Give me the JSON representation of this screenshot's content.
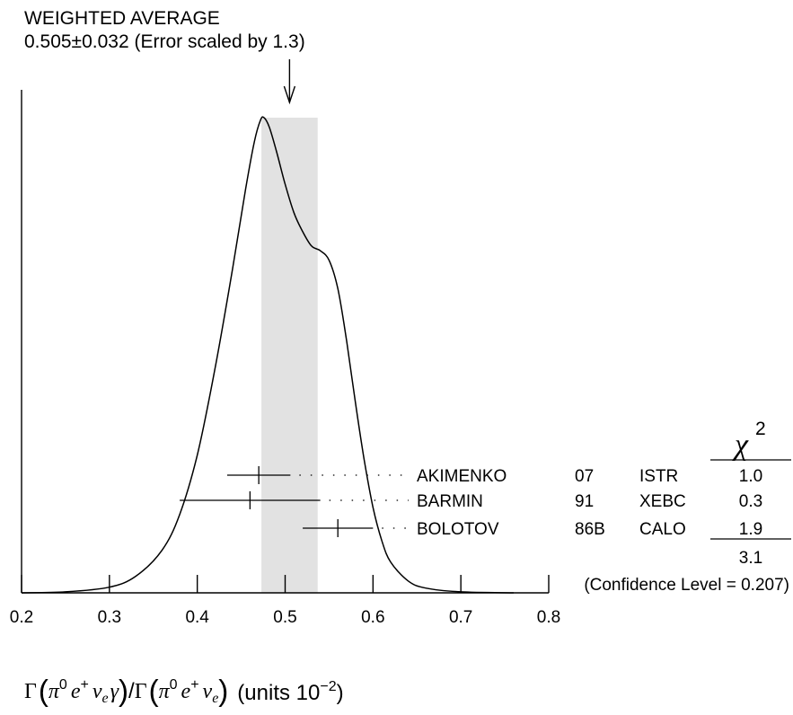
{
  "chart_data": {
    "type": "ideogram",
    "header": {
      "title": "WEIGHTED AVERAGE",
      "subtitle": "0.505±0.032 (Error scaled by 1.3)"
    },
    "weighted_average": {
      "value": 0.505,
      "error": 0.032,
      "scale_factor": 1.3
    },
    "band": [
      0.473,
      0.537
    ],
    "xlim": [
      0.2,
      0.8
    ],
    "x_ticks": [
      0.2,
      0.3,
      0.4,
      0.5,
      0.6,
      0.7,
      0.8
    ],
    "x_tick_labels": [
      "0.2",
      "0.3",
      "0.4",
      "0.5",
      "0.6",
      "0.7",
      "0.8"
    ],
    "xlabel": {
      "gamma": "Γ",
      "numerator_pi": "π",
      "numerator_zero": "0",
      "numerator_e": "e",
      "numerator_plus": "+",
      "numerator_nu": "ν",
      "numerator_nu_sub": "e",
      "numerator_gamma": "γ",
      "slash": "/",
      "denominator_pi": "π",
      "denominator_zero": "0",
      "denominator_e": "e",
      "denominator_plus": "+",
      "denominator_nu": "ν",
      "denominator_nu_sub": "e",
      "units_text": "(units 10",
      "units_exp": "−2",
      "units_close": ")"
    },
    "measurements": [
      {
        "author": "AKIMENKO",
        "year": "07",
        "technique": "ISTR",
        "value": 0.47,
        "lo": 0.434,
        "hi": 0.506,
        "chi2": "1.0"
      },
      {
        "author": "BARMIN",
        "year": "91",
        "technique": "XEBC",
        "value": 0.46,
        "lo": 0.38,
        "hi": 0.54,
        "chi2": "0.3"
      },
      {
        "author": "BOLOTOV",
        "year": "86B",
        "technique": "CALO",
        "value": 0.56,
        "lo": 0.52,
        "hi": 0.6,
        "chi2": "1.9"
      }
    ],
    "chi2_header": {
      "symbol": "χ",
      "exponent": "2"
    },
    "chi2_total": "3.1",
    "confidence_level": "(Confidence Level = 0.207)",
    "curve": [
      [
        0.2,
        0.0
      ],
      [
        0.25,
        0.002
      ],
      [
        0.3,
        0.012
      ],
      [
        0.33,
        0.035
      ],
      [
        0.36,
        0.09
      ],
      [
        0.38,
        0.165
      ],
      [
        0.4,
        0.29
      ],
      [
        0.42,
        0.47
      ],
      [
        0.44,
        0.68
      ],
      [
        0.455,
        0.85
      ],
      [
        0.465,
        0.95
      ],
      [
        0.472,
        0.995
      ],
      [
        0.476,
        1.0
      ],
      [
        0.482,
        0.98
      ],
      [
        0.49,
        0.93
      ],
      [
        0.5,
        0.86
      ],
      [
        0.51,
        0.8
      ],
      [
        0.52,
        0.76
      ],
      [
        0.53,
        0.73
      ],
      [
        0.54,
        0.72
      ],
      [
        0.55,
        0.7
      ],
      [
        0.56,
        0.64
      ],
      [
        0.57,
        0.53
      ],
      [
        0.58,
        0.4
      ],
      [
        0.59,
        0.28
      ],
      [
        0.6,
        0.18
      ],
      [
        0.61,
        0.11
      ],
      [
        0.62,
        0.065
      ],
      [
        0.64,
        0.025
      ],
      [
        0.66,
        0.01
      ],
      [
        0.7,
        0.002
      ],
      [
        0.76,
        0.0
      ]
    ]
  }
}
